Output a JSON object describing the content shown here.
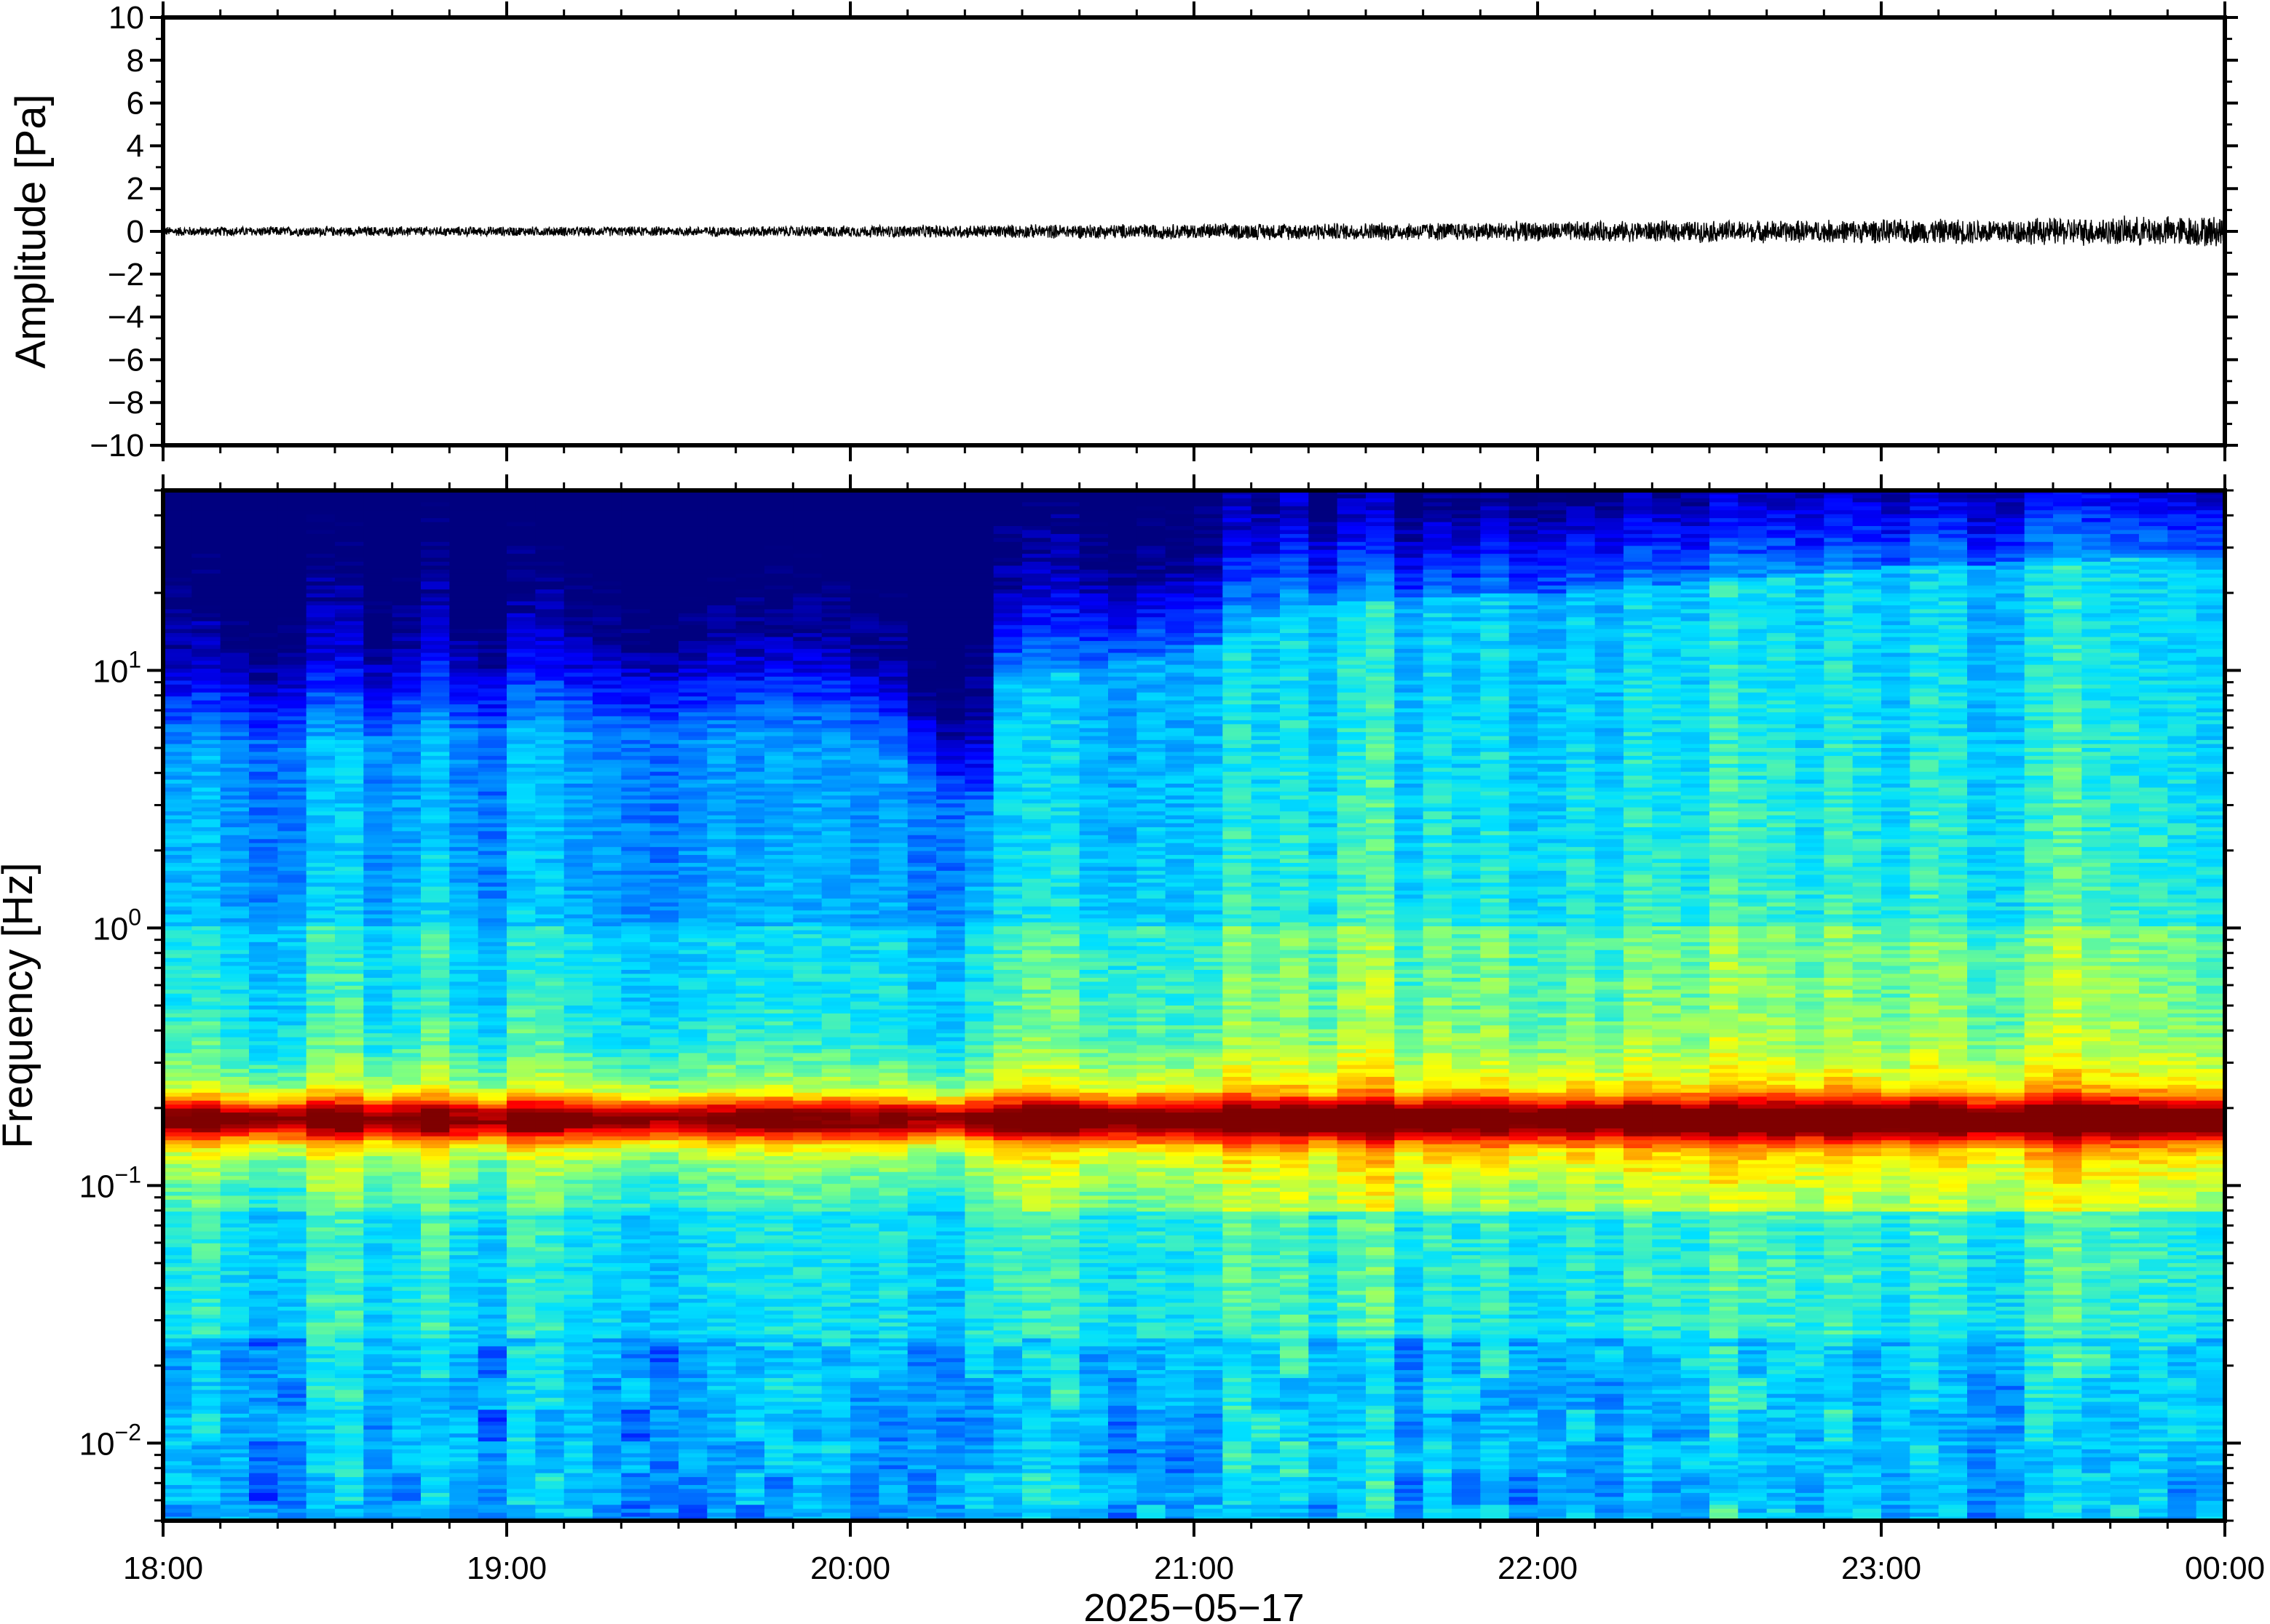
{
  "chart_data": [
    {
      "type": "line",
      "title": "",
      "ylabel": "Amplitude [Pa]",
      "xlabel": "",
      "ylim": [
        -10,
        10
      ],
      "yticks": [
        10,
        8,
        6,
        4,
        2,
        0,
        -2,
        -4,
        -6,
        -8,
        -10
      ],
      "ytick_labels": [
        "10",
        "8",
        "6",
        "4",
        "2",
        "0",
        "−2",
        "−4",
        "−6",
        "−8",
        "−10"
      ],
      "x_range": [
        "18:00",
        "00:00"
      ],
      "series": [
        {
          "envelope_hours": [
            0,
            0.5,
            1,
            1.5,
            2,
            2.5,
            3,
            3.5,
            4,
            4.5,
            5,
            5.5,
            6
          ],
          "amplitude_pa": [
            0.25,
            0.25,
            0.25,
            0.25,
            0.3,
            0.35,
            0.4,
            0.45,
            0.5,
            0.55,
            0.6,
            0.7,
            0.8
          ],
          "color": "#000000"
        }
      ]
    },
    {
      "type": "heatmap",
      "title": "",
      "ylabel": "Frequency [Hz]",
      "xlabel": "2025−05−17",
      "y_scale": "log",
      "ylim_hz": [
        0.005,
        50
      ],
      "yticks_hz": [
        10,
        1,
        0.1,
        0.01
      ],
      "ytick_labels": [
        {
          "base": "10",
          "exp": "1"
        },
        {
          "base": "10",
          "exp": "0"
        },
        {
          "base": "10",
          "exp": "−1"
        },
        {
          "base": "10",
          "exp": "−2"
        }
      ],
      "xticks": [
        "18:00",
        "19:00",
        "20:00",
        "21:00",
        "22:00",
        "23:00",
        "00:00"
      ],
      "colormap": "jet",
      "colormap_stops": [
        "#00007f",
        "#0000ff",
        "#0080ff",
        "#00e0ff",
        "#7fff7f",
        "#ffff00",
        "#ff8000",
        "#ff0000",
        "#7f0000"
      ],
      "features": {
        "microseism_band_hz": 0.18,
        "upper_cutoff_hz_by_hour": [
          [
            0,
            5
          ],
          [
            1,
            6
          ],
          [
            2,
            6
          ],
          [
            2.4,
            2.5
          ],
          [
            2.45,
            9
          ],
          [
            3,
            12
          ],
          [
            3.3,
            18
          ],
          [
            4,
            20
          ],
          [
            5,
            25
          ],
          [
            6,
            28
          ]
        ]
      }
    }
  ],
  "colors": {
    "frame": "#000000",
    "background": "#ffffff"
  }
}
